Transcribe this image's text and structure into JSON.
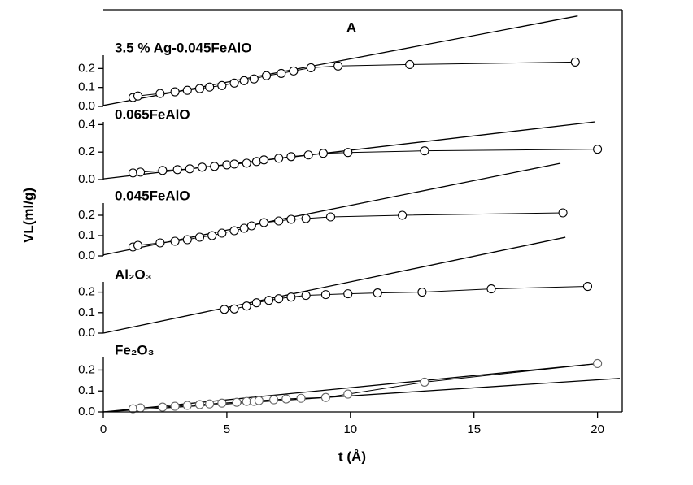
{
  "chart_data": [
    {
      "type": "scatter",
      "title": "A",
      "label": "3.5 % Ag-0.045FeAlO",
      "ylim": [
        0,
        0.27
      ],
      "yticks": [
        {
          "value": 0,
          "label": "0.0"
        },
        0.1,
        0.2
      ],
      "points": {
        "x": [
          1.2,
          1.4,
          2.3,
          2.9,
          3.4,
          3.9,
          4.3,
          4.8,
          5.3,
          5.7,
          6.1,
          6.6,
          7.2,
          7.7,
          8.4,
          9.5,
          12.4,
          19.1
        ],
        "values": [
          0.047,
          0.055,
          0.068,
          0.077,
          0.085,
          0.094,
          0.102,
          0.11,
          0.123,
          0.136,
          0.145,
          0.162,
          0.174,
          0.187,
          0.204,
          0.213,
          0.221,
          0.234
        ]
      },
      "fits": [
        {
          "x": [
            0,
            19.2
          ],
          "values": [
            0.005,
            0.477
          ]
        }
      ]
    },
    {
      "type": "scatter",
      "label": "0.065FeAlO",
      "ylim": [
        0,
        0.42
      ],
      "yticks": [
        {
          "value": 0,
          "label": "0.0"
        },
        0.2,
        0.4
      ],
      "points": {
        "x": [
          1.2,
          1.5,
          2.4,
          3.0,
          3.5,
          4.0,
          4.5,
          5.0,
          5.3,
          5.8,
          6.2,
          6.5,
          7.1,
          7.6,
          8.3,
          8.9,
          9.9,
          13.0,
          20.0
        ],
        "values": [
          0.048,
          0.054,
          0.066,
          0.072,
          0.078,
          0.09,
          0.096,
          0.107,
          0.113,
          0.119,
          0.131,
          0.143,
          0.155,
          0.167,
          0.179,
          0.191,
          0.197,
          0.209,
          0.221
        ]
      },
      "fits": [
        {
          "x": [
            0,
            19.9
          ],
          "values": [
            0.005,
            0.42
          ]
        }
      ]
    },
    {
      "type": "scatter",
      "label": "0.045FeAlO",
      "y_label": "VL(ml/g)",
      "ylim": [
        0,
        0.26
      ],
      "yticks": [
        {
          "value": 0,
          "label": "0.0"
        },
        0.1,
        0.2
      ],
      "points": {
        "x": [
          1.2,
          1.4,
          2.3,
          2.9,
          3.4,
          3.9,
          4.4,
          4.8,
          5.3,
          5.7,
          6.0,
          6.5,
          7.1,
          7.6,
          8.2,
          9.2,
          12.1,
          18.6
        ],
        "values": [
          0.044,
          0.052,
          0.064,
          0.072,
          0.08,
          0.092,
          0.1,
          0.112,
          0.124,
          0.136,
          0.148,
          0.164,
          0.172,
          0.18,
          0.184,
          0.192,
          0.2,
          0.212
        ]
      },
      "fits": [
        {
          "x": [
            0,
            18.5
          ],
          "values": [
            0.005,
            0.456
          ]
        }
      ]
    },
    {
      "type": "scatter",
      "label": "Al₂O₃",
      "ylim": [
        0,
        0.25
      ],
      "yticks": [
        {
          "value": 0,
          "label": "0.0"
        },
        0.1,
        0.2
      ],
      "points": {
        "x": [
          4.9,
          5.3,
          5.8,
          6.2,
          6.7,
          7.1,
          7.6,
          8.2,
          9.0,
          9.9,
          11.1,
          12.9,
          15.7,
          19.6
        ],
        "values": [
          0.116,
          0.118,
          0.132,
          0.148,
          0.16,
          0.168,
          0.176,
          0.184,
          0.188,
          0.192,
          0.196,
          0.2,
          0.216,
          0.228
        ]
      },
      "fits": [
        {
          "x": [
            0,
            18.7
          ],
          "values": [
            0,
            0.468
          ]
        }
      ]
    },
    {
      "type": "scatter",
      "label": "Fe₂O₃",
      "x_label": "t (Å)",
      "xlim": [
        0,
        21
      ],
      "xticks": [
        0,
        5,
        10,
        15,
        20
      ],
      "ylim": [
        0,
        0.26
      ],
      "yticks": [
        {
          "value": 0,
          "label": "0.0"
        },
        0.1,
        0.2
      ],
      "points": {
        "x": [
          1.2,
          1.5,
          2.4,
          2.9,
          3.4,
          3.9,
          4.3,
          4.8,
          5.4,
          5.8,
          6.1,
          6.3,
          6.9,
          7.4,
          8.0,
          9.0,
          9.9,
          13.0,
          20.0
        ],
        "values": [
          0.015,
          0.019,
          0.023,
          0.027,
          0.031,
          0.035,
          0.038,
          0.042,
          0.046,
          0.05,
          0.05,
          0.054,
          0.058,
          0.062,
          0.065,
          0.069,
          0.085,
          0.142,
          0.231
        ]
      },
      "fits": [
        {
          "x": [
            0,
            20
          ],
          "values": [
            0,
            0.231
          ]
        },
        {
          "x": [
            0,
            20.9
          ],
          "values": [
            0,
            0.16
          ]
        }
      ]
    }
  ]
}
